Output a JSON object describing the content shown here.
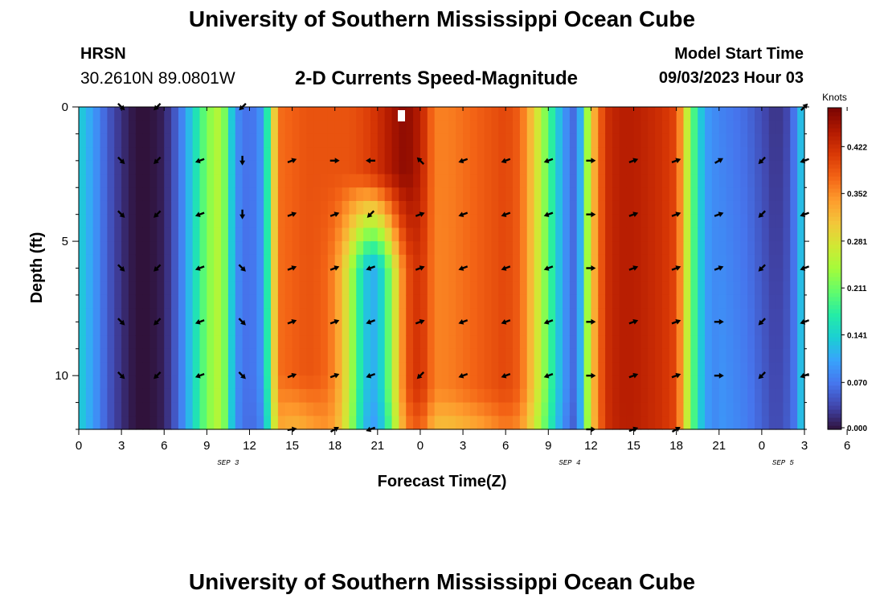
{
  "header": {
    "title": "University of Southern Mississippi Ocean Cube",
    "station": "HRSN",
    "coords": "30.2610N  89.0801W",
    "plot_name": "2-D Currents Speed-Magnitude",
    "model_label": "Model Start Time",
    "model_time": "09/03/2023 Hour 03"
  },
  "footer": {
    "title": "University of Southern Mississippi Ocean Cube"
  },
  "colors": {
    "colormap": [
      "#30123b",
      "#4145ab",
      "#4675ed",
      "#39a2fc",
      "#1bcfd4",
      "#24eca6",
      "#61fc6c",
      "#a4fc3b",
      "#d1e834",
      "#f3c63a",
      "#fe9b2d",
      "#f36315",
      "#d93806",
      "#b11901",
      "#7a0402"
    ],
    "arrow": "#000000"
  },
  "chart_data": {
    "type": "heatmap",
    "title": "2-D Currents Speed-Magnitude",
    "xlabel": "Forecast Time(Z)",
    "ylabel": "Depth (ft)",
    "x_hours": [
      0,
      51
    ],
    "ylim": [
      0,
      12
    ],
    "x_tick_labels": [
      "0",
      "3",
      "6",
      "9",
      "12",
      "15",
      "18",
      "21",
      "0",
      "3",
      "6",
      "9",
      "12",
      "15",
      "18",
      "21",
      "0",
      "3",
      "6"
    ],
    "y_ticks": [
      0,
      5,
      10
    ],
    "day_labels": [
      {
        "label": "SEP 3",
        "hour": 10.5
      },
      {
        "label": "SEP 4",
        "hour": 34.5
      },
      {
        "label": "SEP 5",
        "hour": 49.5
      }
    ],
    "colorbar": {
      "label": "Knots",
      "min": 0.0,
      "max": 0.48,
      "ticks": [
        "0.000",
        "0.070",
        "0.141",
        "0.211",
        "0.281",
        "0.352",
        "0.422"
      ]
    },
    "surface_speed_hours": [
      0,
      1,
      2,
      3,
      4,
      5,
      6,
      7,
      8,
      9,
      10,
      11,
      12,
      13,
      14,
      15,
      16,
      17,
      18,
      19,
      20,
      21,
      22,
      23,
      24,
      25,
      26,
      27,
      28,
      29,
      30,
      31,
      32,
      33,
      34,
      35,
      36,
      37,
      38,
      39,
      40,
      41,
      42,
      43,
      44,
      45,
      46,
      47,
      48,
      49,
      50,
      51
    ],
    "surface_speed": [
      0.14,
      0.1,
      0.05,
      0.02,
      0.0,
      0.0,
      0.01,
      0.06,
      0.14,
      0.22,
      0.26,
      0.09,
      0.06,
      0.1,
      0.37,
      0.38,
      0.39,
      0.39,
      0.39,
      0.39,
      0.4,
      0.42,
      0.45,
      0.47,
      0.44,
      0.36,
      0.36,
      0.37,
      0.38,
      0.39,
      0.4,
      0.38,
      0.3,
      0.2,
      0.1,
      0.05,
      0.3,
      0.42,
      0.44,
      0.44,
      0.43,
      0.42,
      0.4,
      0.22,
      0.1,
      0.08,
      0.07,
      0.06,
      0.04,
      0.02,
      0.04,
      0.15
    ],
    "arrow_depths": [
      0,
      2,
      4,
      6,
      8,
      10,
      12
    ],
    "arrow_hours": [
      3,
      5.5,
      8.5,
      11.5,
      15,
      18,
      20.5,
      24,
      27,
      30,
      33,
      36,
      39,
      42,
      45,
      48,
      51
    ],
    "arrow_directions_deg": [
      [
        135,
        225,
        null,
        225,
        null,
        null,
        null,
        null,
        null,
        null,
        null,
        null,
        null,
        null,
        null,
        null,
        45
      ],
      [
        135,
        225,
        250,
        180,
        70,
        90,
        270,
        315,
        250,
        250,
        250,
        90,
        70,
        70,
        60,
        225,
        250
      ],
      [
        135,
        225,
        250,
        180,
        70,
        70,
        225,
        70,
        250,
        250,
        250,
        90,
        70,
        70,
        70,
        225,
        250
      ],
      [
        135,
        225,
        250,
        135,
        70,
        70,
        250,
        70,
        250,
        250,
        250,
        90,
        70,
        70,
        70,
        225,
        250
      ],
      [
        135,
        225,
        250,
        135,
        70,
        70,
        250,
        70,
        250,
        250,
        250,
        90,
        70,
        70,
        90,
        225,
        250
      ],
      [
        135,
        225,
        250,
        135,
        70,
        70,
        250,
        225,
        250,
        250,
        250,
        90,
        70,
        70,
        90,
        225,
        250
      ],
      [
        null,
        null,
        null,
        null,
        80,
        60,
        250,
        null,
        null,
        null,
        null,
        90,
        70,
        60,
        null,
        null,
        null
      ]
    ]
  }
}
